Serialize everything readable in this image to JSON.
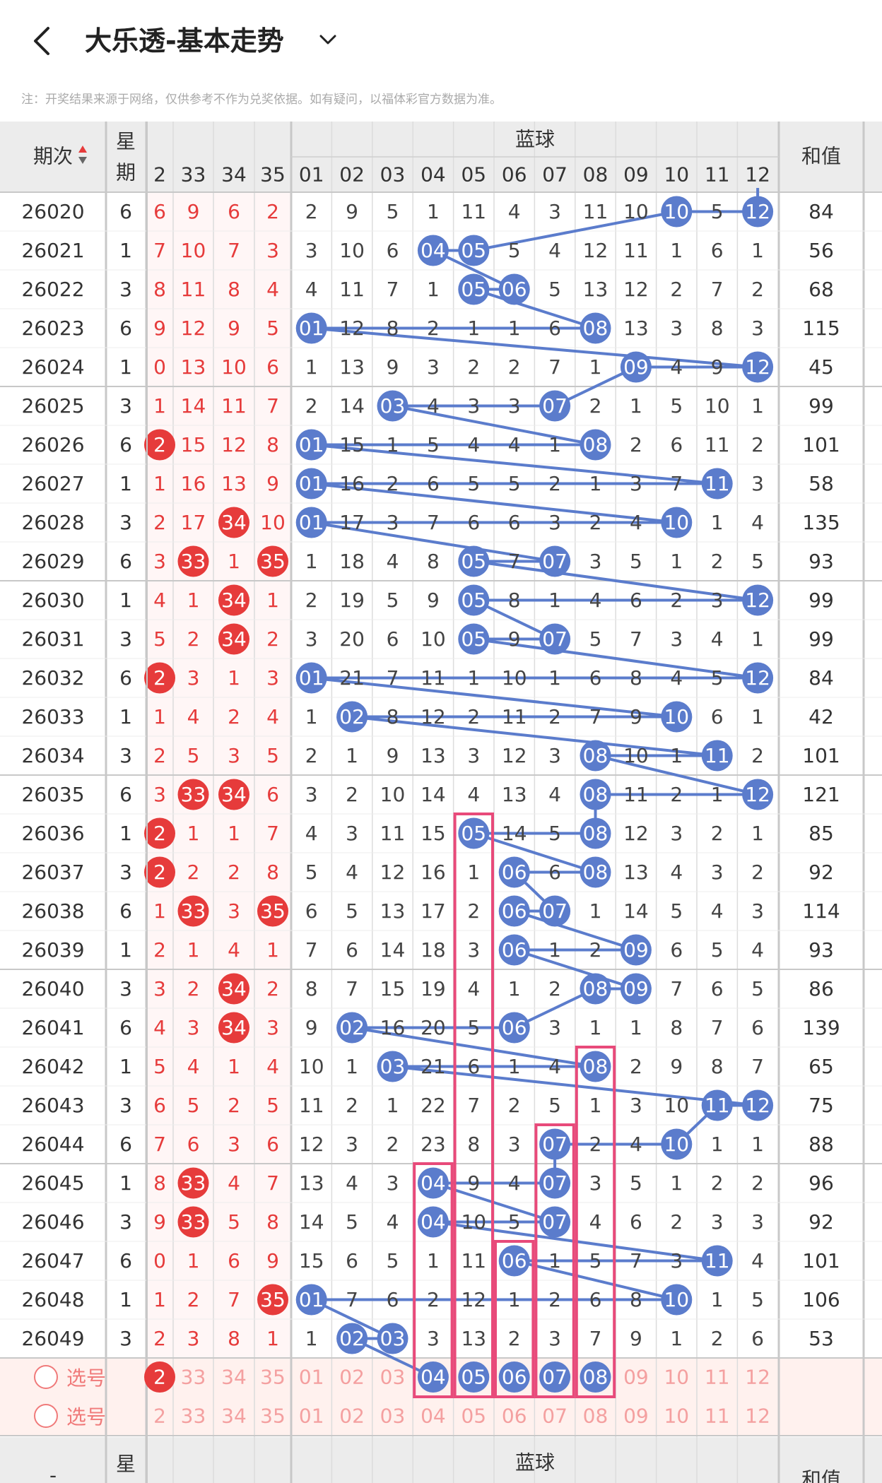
{
  "header": {
    "title": "大乐透-基本走势",
    "back_icon": "chevron-left-icon",
    "dropdown_icon": "chevron-down-icon"
  },
  "note": "注：开奖结果来源于网络，仅供参考不作为兑奖依据。如有疑问，以福体彩官方数据为准。",
  "table": {
    "col_period": "期次",
    "col_week": "星期",
    "col_blue": "蓝球",
    "col_sum": "和值",
    "red_header_cols": [
      "2",
      "33",
      "34",
      "35"
    ],
    "blue_header_cols": [
      "01",
      "02",
      "03",
      "04",
      "05",
      "06",
      "07",
      "08",
      "09",
      "10",
      "11",
      "12"
    ],
    "footer_week": "星",
    "footer_sum": "和值",
    "footer_period": "-",
    "rows": [
      {
        "period": "26020",
        "week": "6",
        "red": [
          "6",
          "9",
          "6",
          "2"
        ],
        "red_hit": [],
        "blue": [
          "2",
          "9",
          "5",
          "1",
          "11",
          "4",
          "3",
          "11",
          "10",
          "10",
          "5",
          "12"
        ],
        "blue_hit": [
          10,
          12
        ],
        "sum": "84"
      },
      {
        "period": "26021",
        "week": "1",
        "red": [
          "7",
          "10",
          "7",
          "3"
        ],
        "red_hit": [],
        "blue": [
          "3",
          "10",
          "6",
          "04",
          "05",
          "5",
          "4",
          "12",
          "11",
          "1",
          "6",
          "1"
        ],
        "blue_hit": [
          4,
          5
        ],
        "sum": "56"
      },
      {
        "period": "26022",
        "week": "3",
        "red": [
          "8",
          "11",
          "8",
          "4"
        ],
        "red_hit": [],
        "blue": [
          "4",
          "11",
          "7",
          "1",
          "05",
          "06",
          "5",
          "13",
          "12",
          "2",
          "7",
          "2"
        ],
        "blue_hit": [
          5,
          6
        ],
        "sum": "68"
      },
      {
        "period": "26023",
        "week": "6",
        "red": [
          "9",
          "12",
          "9",
          "5"
        ],
        "red_hit": [],
        "blue": [
          "01",
          "12",
          "8",
          "2",
          "1",
          "1",
          "6",
          "08",
          "13",
          "3",
          "8",
          "3"
        ],
        "blue_hit": [
          1,
          8
        ],
        "sum": "115"
      },
      {
        "period": "26024",
        "week": "1",
        "red": [
          "0",
          "13",
          "10",
          "6"
        ],
        "red_hit": [],
        "blue": [
          "1",
          "13",
          "9",
          "3",
          "2",
          "2",
          "7",
          "1",
          "09",
          "4",
          "9",
          "12"
        ],
        "blue_hit": [
          9,
          12
        ],
        "sum": "45"
      },
      {
        "period": "26025",
        "week": "3",
        "red": [
          "1",
          "14",
          "11",
          "7"
        ],
        "red_hit": [],
        "blue": [
          "2",
          "14",
          "03",
          "4",
          "3",
          "3",
          "07",
          "2",
          "1",
          "5",
          "10",
          "1"
        ],
        "blue_hit": [
          3,
          7
        ],
        "sum": "99"
      },
      {
        "period": "26026",
        "week": "6",
        "red": [
          "2",
          "15",
          "12",
          "8"
        ],
        "red_hit": [
          1
        ],
        "blue": [
          "01",
          "15",
          "1",
          "5",
          "4",
          "4",
          "1",
          "08",
          "2",
          "6",
          "11",
          "2"
        ],
        "blue_hit": [
          1,
          8
        ],
        "sum": "101"
      },
      {
        "period": "26027",
        "week": "1",
        "red": [
          "1",
          "16",
          "13",
          "9"
        ],
        "red_hit": [],
        "blue": [
          "01",
          "16",
          "2",
          "6",
          "5",
          "5",
          "2",
          "1",
          "3",
          "7",
          "11",
          "3"
        ],
        "blue_hit": [
          1,
          11
        ],
        "sum": "58"
      },
      {
        "period": "26028",
        "week": "3",
        "red": [
          "2",
          "17",
          "34",
          "10"
        ],
        "red_hit": [
          3
        ],
        "blue": [
          "01",
          "17",
          "3",
          "7",
          "6",
          "6",
          "3",
          "2",
          "4",
          "10",
          "1",
          "4"
        ],
        "blue_hit": [
          1,
          10
        ],
        "sum": "135"
      },
      {
        "period": "26029",
        "week": "6",
        "red": [
          "3",
          "33",
          "1",
          "35"
        ],
        "red_hit": [
          2,
          4
        ],
        "blue": [
          "1",
          "18",
          "4",
          "8",
          "05",
          "7",
          "07",
          "3",
          "5",
          "1",
          "2",
          "5"
        ],
        "blue_hit": [
          5,
          7
        ],
        "sum": "93"
      },
      {
        "period": "26030",
        "week": "1",
        "red": [
          "4",
          "1",
          "34",
          "1"
        ],
        "red_hit": [
          3
        ],
        "blue": [
          "2",
          "19",
          "5",
          "9",
          "05",
          "8",
          "1",
          "4",
          "6",
          "2",
          "3",
          "12"
        ],
        "blue_hit": [
          5,
          12
        ],
        "sum": "99"
      },
      {
        "period": "26031",
        "week": "3",
        "red": [
          "5",
          "2",
          "34",
          "2"
        ],
        "red_hit": [
          3
        ],
        "blue": [
          "3",
          "20",
          "6",
          "10",
          "05",
          "9",
          "07",
          "5",
          "7",
          "3",
          "4",
          "1"
        ],
        "blue_hit": [
          5,
          7
        ],
        "sum": "99"
      },
      {
        "period": "26032",
        "week": "6",
        "red": [
          "2",
          "3",
          "1",
          "3"
        ],
        "red_hit": [
          1
        ],
        "blue": [
          "01",
          "21",
          "7",
          "11",
          "1",
          "10",
          "1",
          "6",
          "8",
          "4",
          "5",
          "12"
        ],
        "blue_hit": [
          1,
          12
        ],
        "sum": "84"
      },
      {
        "period": "26033",
        "week": "1",
        "red": [
          "1",
          "4",
          "2",
          "4"
        ],
        "red_hit": [],
        "blue": [
          "1",
          "02",
          "8",
          "12",
          "2",
          "11",
          "2",
          "7",
          "9",
          "10",
          "6",
          "1"
        ],
        "blue_hit": [
          2,
          10
        ],
        "sum": "42"
      },
      {
        "period": "26034",
        "week": "3",
        "red": [
          "2",
          "5",
          "3",
          "5"
        ],
        "red_hit": [],
        "blue": [
          "2",
          "1",
          "9",
          "13",
          "3",
          "12",
          "3",
          "08",
          "10",
          "1",
          "11",
          "2"
        ],
        "blue_hit": [
          8,
          11
        ],
        "sum": "101"
      },
      {
        "period": "26035",
        "week": "6",
        "red": [
          "3",
          "33",
          "34",
          "6"
        ],
        "red_hit": [
          2,
          3
        ],
        "blue": [
          "3",
          "2",
          "10",
          "14",
          "4",
          "13",
          "4",
          "08",
          "11",
          "2",
          "1",
          "12"
        ],
        "blue_hit": [
          8,
          12
        ],
        "sum": "121"
      },
      {
        "period": "26036",
        "week": "1",
        "red": [
          "2",
          "1",
          "1",
          "7"
        ],
        "red_hit": [
          1
        ],
        "blue": [
          "4",
          "3",
          "11",
          "15",
          "05",
          "14",
          "5",
          "08",
          "12",
          "3",
          "2",
          "1"
        ],
        "blue_hit": [
          5,
          8
        ],
        "sum": "85"
      },
      {
        "period": "26037",
        "week": "3",
        "red": [
          "2",
          "2",
          "2",
          "8"
        ],
        "red_hit": [
          1
        ],
        "blue": [
          "5",
          "4",
          "12",
          "16",
          "1",
          "06",
          "6",
          "08",
          "13",
          "4",
          "3",
          "2"
        ],
        "blue_hit": [
          6,
          8
        ],
        "sum": "92"
      },
      {
        "period": "26038",
        "week": "6",
        "red": [
          "1",
          "33",
          "3",
          "35"
        ],
        "red_hit": [
          2,
          4
        ],
        "blue": [
          "6",
          "5",
          "13",
          "17",
          "2",
          "06",
          "07",
          "1",
          "14",
          "5",
          "4",
          "3"
        ],
        "blue_hit": [
          6,
          7
        ],
        "sum": "114"
      },
      {
        "period": "26039",
        "week": "1",
        "red": [
          "2",
          "1",
          "4",
          "1"
        ],
        "red_hit": [],
        "blue": [
          "7",
          "6",
          "14",
          "18",
          "3",
          "06",
          "1",
          "2",
          "09",
          "6",
          "5",
          "4"
        ],
        "blue_hit": [
          6,
          9
        ],
        "sum": "93"
      },
      {
        "period": "26040",
        "week": "3",
        "red": [
          "3",
          "2",
          "34",
          "2"
        ],
        "red_hit": [
          3
        ],
        "blue": [
          "8",
          "7",
          "15",
          "19",
          "4",
          "1",
          "2",
          "08",
          "09",
          "7",
          "6",
          "5"
        ],
        "blue_hit": [
          8,
          9
        ],
        "sum": "86"
      },
      {
        "period": "26041",
        "week": "6",
        "red": [
          "4",
          "3",
          "34",
          "3"
        ],
        "red_hit": [
          3
        ],
        "blue": [
          "9",
          "02",
          "16",
          "20",
          "5",
          "06",
          "3",
          "1",
          "1",
          "8",
          "7",
          "6"
        ],
        "blue_hit": [
          2,
          6
        ],
        "sum": "139"
      },
      {
        "period": "26042",
        "week": "1",
        "red": [
          "5",
          "4",
          "1",
          "4"
        ],
        "red_hit": [],
        "blue": [
          "10",
          "1",
          "03",
          "21",
          "6",
          "1",
          "4",
          "08",
          "2",
          "9",
          "8",
          "7"
        ],
        "blue_hit": [
          3,
          8
        ],
        "sum": "65"
      },
      {
        "period": "26043",
        "week": "3",
        "red": [
          "6",
          "5",
          "2",
          "5"
        ],
        "red_hit": [],
        "blue": [
          "11",
          "2",
          "1",
          "22",
          "7",
          "2",
          "5",
          "1",
          "3",
          "10",
          "11",
          "12"
        ],
        "blue_hit": [
          11,
          12
        ],
        "sum": "75"
      },
      {
        "period": "26044",
        "week": "6",
        "red": [
          "7",
          "6",
          "3",
          "6"
        ],
        "red_hit": [],
        "blue": [
          "12",
          "3",
          "2",
          "23",
          "8",
          "3",
          "07",
          "2",
          "4",
          "10",
          "1",
          "1"
        ],
        "blue_hit": [
          7,
          10
        ],
        "sum": "88"
      },
      {
        "period": "26045",
        "week": "1",
        "red": [
          "8",
          "33",
          "4",
          "7"
        ],
        "red_hit": [
          2
        ],
        "blue": [
          "13",
          "4",
          "3",
          "04",
          "9",
          "4",
          "07",
          "3",
          "5",
          "1",
          "2",
          "2"
        ],
        "blue_hit": [
          4,
          7
        ],
        "sum": "96"
      },
      {
        "period": "26046",
        "week": "3",
        "red": [
          "9",
          "33",
          "5",
          "8"
        ],
        "red_hit": [
          2
        ],
        "blue": [
          "14",
          "5",
          "4",
          "04",
          "10",
          "5",
          "07",
          "4",
          "6",
          "2",
          "3",
          "3"
        ],
        "blue_hit": [
          4,
          7
        ],
        "sum": "92"
      },
      {
        "period": "26047",
        "week": "6",
        "red": [
          "0",
          "1",
          "6",
          "9"
        ],
        "red_hit": [],
        "blue": [
          "15",
          "6",
          "5",
          "1",
          "11",
          "06",
          "1",
          "5",
          "7",
          "3",
          "11",
          "4"
        ],
        "blue_hit": [
          6,
          11
        ],
        "sum": "101"
      },
      {
        "period": "26048",
        "week": "1",
        "red": [
          "1",
          "2",
          "7",
          "35"
        ],
        "red_hit": [
          4
        ],
        "blue": [
          "01",
          "7",
          "6",
          "2",
          "12",
          "1",
          "2",
          "6",
          "8",
          "10",
          "1",
          "5"
        ],
        "blue_hit": [
          1,
          10
        ],
        "sum": "106"
      },
      {
        "period": "26049",
        "week": "3",
        "red": [
          "2",
          "3",
          "8",
          "1"
        ],
        "red_hit": [],
        "blue": [
          "1",
          "02",
          "03",
          "3",
          "13",
          "2",
          "3",
          "7",
          "9",
          "1",
          "2",
          "6"
        ],
        "blue_hit": [
          2,
          3
        ],
        "sum": "53"
      }
    ],
    "select_rows": [
      {
        "label": "选号",
        "red": [
          "2",
          "33",
          "34",
          "35"
        ],
        "red_hit": [
          1
        ],
        "blue": [
          "01",
          "02",
          "03",
          "04",
          "05",
          "06",
          "07",
          "08",
          "09",
          "10",
          "11",
          "12"
        ],
        "blue_hit": [
          4,
          5,
          6,
          7,
          8
        ]
      },
      {
        "label": "选号",
        "red": [
          "2",
          "33",
          "34",
          "35"
        ],
        "red_hit": [],
        "blue": [
          "01",
          "02",
          "03",
          "04",
          "05",
          "06",
          "07",
          "08",
          "09",
          "10",
          "11",
          "12"
        ],
        "blue_hit": []
      }
    ]
  },
  "colors": {
    "red_ball": "#e63b3b",
    "blue_ball": "#5b7ccc",
    "highlight_box": "#e84a7a",
    "grid_header_bg": "#ececec"
  }
}
